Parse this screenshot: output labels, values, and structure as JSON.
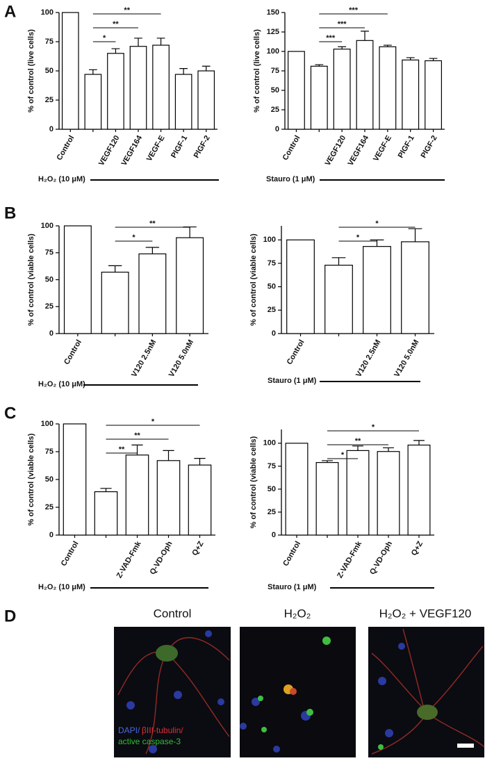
{
  "panel_labels": [
    "A",
    "B",
    "C",
    "D"
  ],
  "chart_data": [
    {
      "type": "bar",
      "ylabel": "% of control (live cells)",
      "color": "#ffffff",
      "categories": [
        "Control",
        null,
        "VEGF120",
        "VEGF164",
        "VEGF-E",
        "PlGF-1",
        "PlGF-2"
      ],
      "values": [
        100,
        47,
        65,
        71,
        72,
        47,
        50
      ],
      "errors": [
        null,
        4,
        4,
        7,
        6,
        5,
        4
      ],
      "ylim": [
        0,
        100
      ],
      "yticks": [
        0,
        25,
        50,
        75,
        100
      ],
      "treatment": "H₂O₂ (10 μM)",
      "significance": [
        "*",
        "**",
        "**"
      ]
    },
    {
      "type": "bar",
      "ylabel": "% of control (live cells)",
      "color": "#ffffff",
      "categories": [
        "Control",
        null,
        "VEGF120",
        "VEGF164",
        "VEGF-E",
        "PlGF-1",
        "PlGF-2"
      ],
      "values": [
        100,
        81,
        103,
        114,
        106,
        89,
        88
      ],
      "errors": [
        null,
        2,
        3,
        12,
        2,
        3,
        3
      ],
      "ylim": [
        0,
        150
      ],
      "yticks": [
        0,
        25,
        50,
        75,
        100,
        125,
        150
      ],
      "treatment": "Stauro (1 μM)",
      "significance": [
        "***",
        "***",
        "***"
      ]
    },
    {
      "type": "bar",
      "ylabel": "% of control (viable cells)",
      "color": "#ffffff",
      "categories": [
        "Control",
        null,
        "V120 2.5nM",
        "V120 5.0nM"
      ],
      "values": [
        100,
        57,
        74,
        89
      ],
      "errors": [
        null,
        6,
        6,
        10
      ],
      "ylim": [
        0,
        100
      ],
      "yticks": [
        0,
        25,
        50,
        75,
        100
      ],
      "treatment": "H₂O₂ (10 μM)",
      "significance": [
        "*",
        "**"
      ]
    },
    {
      "type": "bar",
      "ylabel": "% of control (viable cells)",
      "color": "#ffffff",
      "categories": [
        "Control",
        null,
        "V120 2.5nM",
        "V120 5.0nM"
      ],
      "values": [
        100,
        73,
        93,
        98
      ],
      "errors": [
        null,
        8,
        7,
        14
      ],
      "ylim": [
        0,
        115
      ],
      "yticks": [
        0,
        25,
        50,
        75,
        100
      ],
      "treatment": "Stauro (1 μM)",
      "significance": [
        "*",
        "*"
      ]
    },
    {
      "type": "bar",
      "ylabel": "% of control (viable cells)",
      "color": "#ffffff",
      "categories": [
        "Control",
        null,
        "Z-VAD-Fmk",
        "Q-VD-Oph",
        "Q+Z"
      ],
      "values": [
        100,
        39,
        72,
        67,
        63
      ],
      "errors": [
        null,
        3,
        9,
        9,
        6
      ],
      "ylim": [
        0,
        100
      ],
      "yticks": [
        0,
        25,
        50,
        75,
        100
      ],
      "treatment": "H₂O₂ (10 μM)",
      "significance": [
        "**",
        "**",
        "*"
      ]
    },
    {
      "type": "bar",
      "ylabel": "% of control (viable cells)",
      "color": "#ffffff",
      "categories": [
        "Control",
        null,
        "Z-VAD-Fmk",
        "Q-VD-Oph",
        "Q+Z"
      ],
      "values": [
        100,
        79,
        92,
        91,
        98
      ],
      "errors": [
        null,
        2,
        5,
        4,
        5
      ],
      "ylim": [
        0,
        115
      ],
      "yticks": [
        0,
        25,
        50,
        75,
        100
      ],
      "treatment": "Stauro (1 μM)",
      "significance": [
        "*",
        "**",
        "*"
      ]
    }
  ],
  "panel_d": {
    "titles": [
      "Control",
      "H₂O₂",
      "H₂O₂ + VEGF120"
    ],
    "legend": [
      "DAPI/",
      "βIII-tubulin/",
      "active caspase-3"
    ]
  }
}
